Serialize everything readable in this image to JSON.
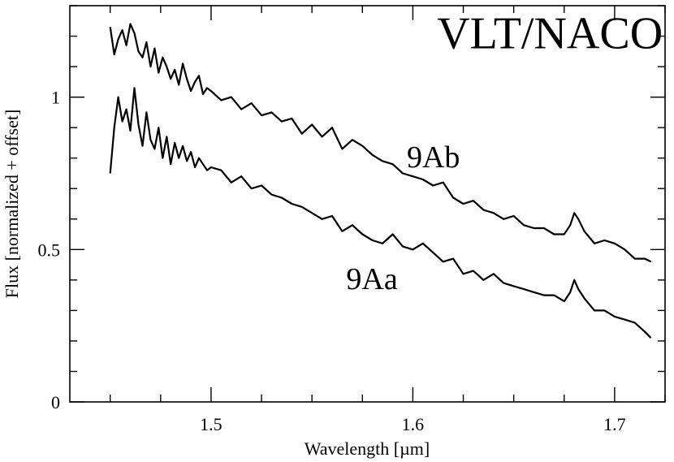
{
  "chart_data": {
    "type": "line",
    "title": "",
    "xlabel": "Wavelength [µm]",
    "ylabel": "Flux [normalized + offset]",
    "xlim": [
      1.43,
      1.725
    ],
    "ylim": [
      0,
      1.3
    ],
    "x_ticks": [
      1.5,
      1.6,
      1.7
    ],
    "x_tick_labels": [
      "1.5",
      "1.6",
      "1.7"
    ],
    "x_minor_step": 0.025,
    "y_ticks": [
      0,
      0.5,
      1
    ],
    "y_tick_labels": [
      "0",
      "0.5",
      "1"
    ],
    "y_minor_step": 0.1,
    "grid": false,
    "annotations": [
      {
        "text": "VLT/NACO",
        "x": 1.612,
        "y": 1.16,
        "size": "large"
      },
      {
        "text": "9Ab",
        "x": 1.597,
        "y": 0.77,
        "size": "series"
      },
      {
        "text": "9Aa",
        "x": 1.567,
        "y": 0.37,
        "size": "series"
      }
    ],
    "series": [
      {
        "x": [
          1.45,
          1.452,
          1.454,
          1.456,
          1.458,
          1.46,
          1.462,
          1.464,
          1.466,
          1.468,
          1.47,
          1.472,
          1.474,
          1.476,
          1.478,
          1.48,
          1.482,
          1.484,
          1.486,
          1.488,
          1.49,
          1.492,
          1.494,
          1.496,
          1.498,
          1.5,
          1.505,
          1.51,
          1.515,
          1.52,
          1.525,
          1.53,
          1.535,
          1.54,
          1.545,
          1.55,
          1.555,
          1.56,
          1.565,
          1.57,
          1.575,
          1.58,
          1.585,
          1.59,
          1.595,
          1.6,
          1.605,
          1.61,
          1.615,
          1.62,
          1.625,
          1.63,
          1.635,
          1.64,
          1.645,
          1.65,
          1.655,
          1.66,
          1.665,
          1.67,
          1.675,
          1.678,
          1.68,
          1.682,
          1.685,
          1.69,
          1.695,
          1.7,
          1.705,
          1.71,
          1.715,
          1.718
        ],
        "values": [
          1.23,
          1.14,
          1.19,
          1.22,
          1.17,
          1.24,
          1.21,
          1.15,
          1.13,
          1.18,
          1.1,
          1.16,
          1.08,
          1.13,
          1.1,
          1.06,
          1.09,
          1.04,
          1.11,
          1.06,
          1.02,
          1.05,
          1.07,
          1.01,
          1.03,
          1.02,
          0.99,
          1.0,
          0.96,
          0.98,
          0.94,
          0.95,
          0.92,
          0.93,
          0.88,
          0.91,
          0.87,
          0.9,
          0.83,
          0.86,
          0.84,
          0.81,
          0.79,
          0.78,
          0.75,
          0.74,
          0.73,
          0.71,
          0.72,
          0.67,
          0.65,
          0.66,
          0.63,
          0.62,
          0.6,
          0.61,
          0.58,
          0.57,
          0.57,
          0.55,
          0.55,
          0.58,
          0.62,
          0.6,
          0.56,
          0.52,
          0.53,
          0.52,
          0.5,
          0.47,
          0.47,
          0.46
        ]
      },
      {
        "x": [
          1.45,
          1.452,
          1.454,
          1.456,
          1.458,
          1.46,
          1.462,
          1.464,
          1.466,
          1.468,
          1.47,
          1.472,
          1.474,
          1.476,
          1.478,
          1.48,
          1.482,
          1.484,
          1.486,
          1.488,
          1.49,
          1.492,
          1.494,
          1.496,
          1.498,
          1.5,
          1.505,
          1.51,
          1.515,
          1.52,
          1.525,
          1.53,
          1.535,
          1.54,
          1.545,
          1.55,
          1.555,
          1.56,
          1.565,
          1.57,
          1.575,
          1.58,
          1.585,
          1.59,
          1.595,
          1.6,
          1.605,
          1.61,
          1.615,
          1.62,
          1.625,
          1.63,
          1.635,
          1.64,
          1.645,
          1.65,
          1.655,
          1.66,
          1.665,
          1.67,
          1.675,
          1.678,
          1.68,
          1.682,
          1.685,
          1.69,
          1.695,
          1.7,
          1.705,
          1.71,
          1.715,
          1.718
        ],
        "values": [
          0.75,
          0.9,
          1.0,
          0.92,
          0.96,
          0.89,
          1.03,
          0.91,
          0.84,
          0.95,
          0.86,
          0.83,
          0.9,
          0.8,
          0.87,
          0.78,
          0.85,
          0.8,
          0.84,
          0.79,
          0.82,
          0.77,
          0.8,
          0.78,
          0.76,
          0.77,
          0.76,
          0.72,
          0.74,
          0.7,
          0.71,
          0.68,
          0.67,
          0.65,
          0.64,
          0.62,
          0.6,
          0.61,
          0.56,
          0.58,
          0.55,
          0.53,
          0.52,
          0.55,
          0.51,
          0.5,
          0.52,
          0.49,
          0.46,
          0.47,
          0.42,
          0.43,
          0.4,
          0.42,
          0.39,
          0.38,
          0.37,
          0.36,
          0.35,
          0.35,
          0.33,
          0.36,
          0.4,
          0.37,
          0.34,
          0.3,
          0.3,
          0.28,
          0.27,
          0.26,
          0.23,
          0.21
        ]
      }
    ]
  }
}
